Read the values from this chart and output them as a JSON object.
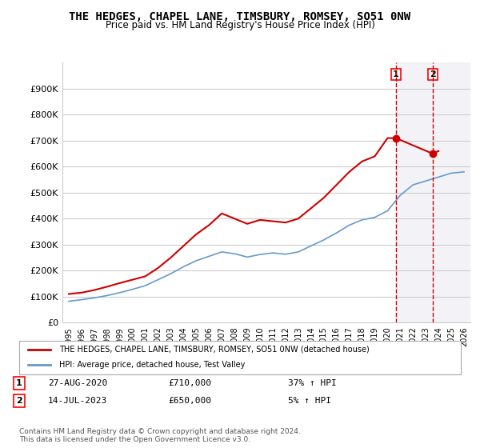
{
  "title": "THE HEDGES, CHAPEL LANE, TIMSBURY, ROMSEY, SO51 0NW",
  "subtitle": "Price paid vs. HM Land Registry's House Price Index (HPI)",
  "legend_line1": "THE HEDGES, CHAPEL LANE, TIMSBURY, ROMSEY, SO51 0NW (detached house)",
  "legend_line2": "HPI: Average price, detached house, Test Valley",
  "footnote": "Contains HM Land Registry data © Crown copyright and database right 2024.\nThis data is licensed under the Open Government Licence v3.0.",
  "annotation1": {
    "num": "1",
    "date": "27-AUG-2020",
    "price": "£710,000",
    "hpi": "37% ↑ HPI"
  },
  "annotation2": {
    "num": "2",
    "date": "14-JUL-2023",
    "price": "£650,000",
    "hpi": "5% ↑ HPI"
  },
  "red_color": "#cc0000",
  "blue_color": "#6699cc",
  "background_color": "#ffffff",
  "grid_color": "#cccccc",
  "ylim": [
    0,
    1000000
  ],
  "yticks": [
    0,
    100000,
    200000,
    300000,
    400000,
    500000,
    600000,
    700000,
    800000,
    900000
  ],
  "ytick_labels": [
    "£0",
    "£100K",
    "£200K",
    "£300K",
    "£400K",
    "£500K",
    "£600K",
    "£700K",
    "£800K",
    "£900K"
  ],
  "years_red": [
    1995,
    1996,
    1997,
    1998,
    1999,
    2000,
    2001,
    2002,
    2003,
    2004,
    2005,
    2006,
    2007,
    2008,
    2009,
    2010,
    2011,
    2012,
    2013,
    2014,
    2015,
    2016,
    2017,
    2018,
    2019,
    2020,
    2020.65,
    2023.54,
    2024
  ],
  "values_red": [
    110000,
    115000,
    125000,
    138000,
    152000,
    165000,
    178000,
    210000,
    250000,
    295000,
    340000,
    375000,
    420000,
    400000,
    380000,
    395000,
    390000,
    385000,
    400000,
    440000,
    480000,
    530000,
    580000,
    620000,
    640000,
    710000,
    710000,
    650000,
    660000
  ],
  "years_blue": [
    1995,
    1996,
    1997,
    1998,
    1999,
    2000,
    2001,
    2002,
    2003,
    2004,
    2005,
    2006,
    2007,
    2008,
    2009,
    2010,
    2011,
    2012,
    2013,
    2014,
    2015,
    2016,
    2017,
    2018,
    2019,
    2020,
    2021,
    2022,
    2023,
    2024,
    2025,
    2026
  ],
  "values_blue": [
    82000,
    88000,
    95000,
    104000,
    115000,
    128000,
    142000,
    165000,
    188000,
    215000,
    238000,
    255000,
    272000,
    265000,
    252000,
    262000,
    268000,
    263000,
    272000,
    295000,
    318000,
    345000,
    375000,
    395000,
    405000,
    430000,
    490000,
    530000,
    545000,
    560000,
    575000,
    580000
  ],
  "sale1_x": 2020.65,
  "sale1_y": 710000,
  "sale2_x": 2023.54,
  "sale2_y": 650000,
  "shade_x1": 2020.65,
  "shade_x2": 2026,
  "xtick_years": [
    1995,
    1996,
    1997,
    1998,
    1999,
    2000,
    2001,
    2002,
    2003,
    2004,
    2005,
    2006,
    2007,
    2008,
    2009,
    2010,
    2011,
    2012,
    2013,
    2014,
    2015,
    2016,
    2017,
    2018,
    2019,
    2020,
    2021,
    2022,
    2023,
    2024,
    2025,
    2026
  ]
}
